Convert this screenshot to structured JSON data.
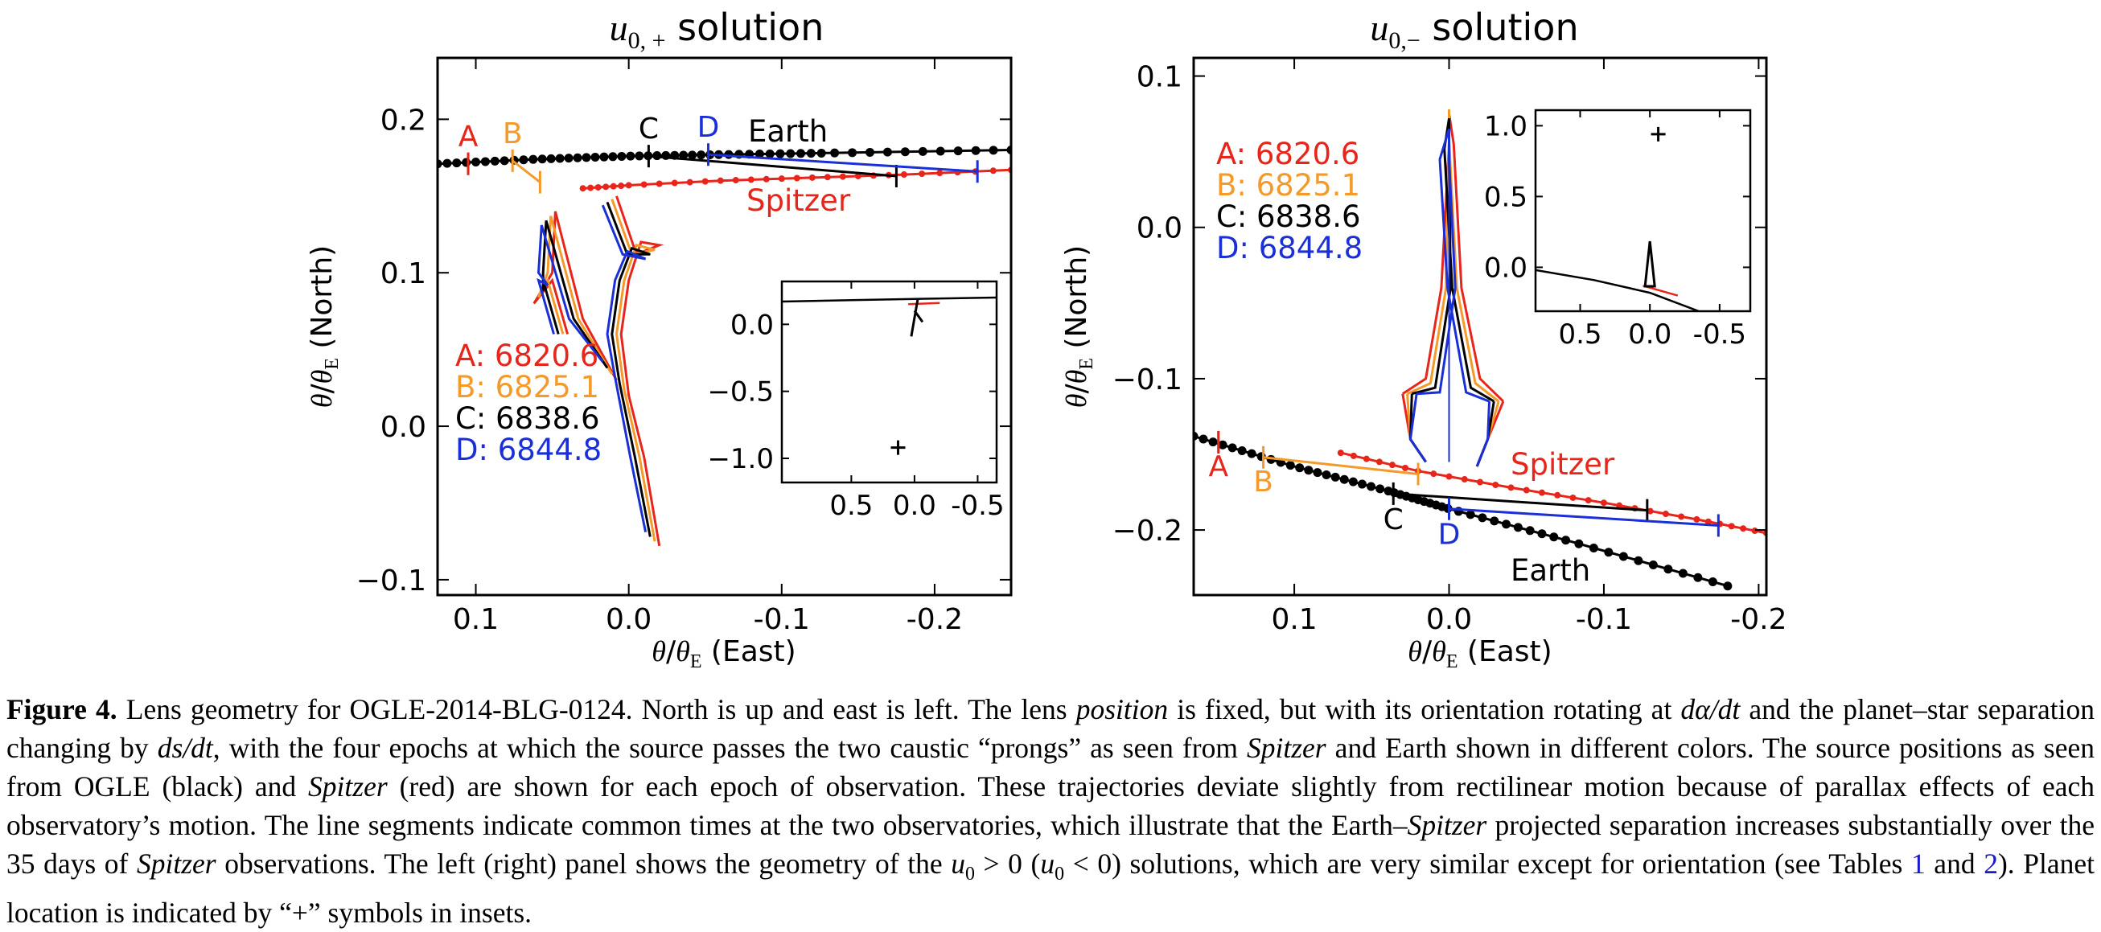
{
  "colors": {
    "A": "#e8251b",
    "B": "#f39a2a",
    "C": "#000000",
    "D": "#1a2fd6"
  },
  "figure_number": "Figure 4.",
  "caption_segments": [
    {
      "t": "Lens geometry for OGLE-2014-BLG-0124. North is up and east is left. The lens ",
      "s": "n"
    },
    {
      "t": "position",
      "s": "i"
    },
    {
      "t": " is fixed, but with its orientation rotating at ",
      "s": "n"
    },
    {
      "t": "dα/dt",
      "s": "i"
    },
    {
      "t": " and the planet–star separation changing by ",
      "s": "n"
    },
    {
      "t": "ds/dt",
      "s": "i"
    },
    {
      "t": ", with the four epochs at which the source passes the two caustic “prongs” as seen from ",
      "s": "n"
    },
    {
      "t": "Spitzer",
      "s": "i"
    },
    {
      "t": " and Earth shown in different colors. The source positions as seen from OGLE (black) and ",
      "s": "n"
    },
    {
      "t": "Spitzer",
      "s": "i"
    },
    {
      "t": " (red) are shown for each epoch of observation. These trajectories deviate slightly from rectilinear motion because of parallax effects of each observatory’s motion. The line segments indicate common times at the two observatories, which illustrate that the Earth–",
      "s": "n"
    },
    {
      "t": "Spitzer",
      "s": "i"
    },
    {
      "t": " projected separation increases substantially over the 35 days of ",
      "s": "n"
    },
    {
      "t": "Spitzer",
      "s": "i"
    },
    {
      "t": " observations. The left (right) panel shows the geometry of the ",
      "s": "n"
    },
    {
      "t": "u",
      "s": "i"
    },
    {
      "t": "0",
      "s": "sub"
    },
    {
      "t": " > 0 (",
      "s": "n"
    },
    {
      "t": "u",
      "s": "i"
    },
    {
      "t": "0",
      "s": "sub"
    },
    {
      "t": " < 0) solutions, which are very similar except for orientation (see Tables ",
      "s": "n"
    },
    {
      "t": "1",
      "s": "ref"
    },
    {
      "t": " and ",
      "s": "n"
    },
    {
      "t": "2",
      "s": "ref"
    },
    {
      "t": "). Planet location is indicated by “+” symbols in insets.",
      "s": "n"
    }
  ],
  "chart_data": [
    {
      "type": "scatter",
      "title_math": "u",
      "title_sub": "0, +",
      "title_text": " solution",
      "xlabel_text": " (East)",
      "ylabel_text": " (North)",
      "xlim": [
        0.125,
        -0.25
      ],
      "ylim": [
        -0.11,
        0.24
      ],
      "xticks": [
        {
          "v": 0.1,
          "l": "0.1"
        },
        {
          "v": 0.0,
          "l": "0.0"
        },
        {
          "v": -0.1,
          "l": "-0.1"
        },
        {
          "v": -0.2,
          "l": "-0.2"
        }
      ],
      "yticks": [
        {
          "v": 0.2,
          "l": "0.2"
        },
        {
          "v": 0.1,
          "l": "0.1"
        },
        {
          "v": 0.0,
          "l": "0.0"
        },
        {
          "v": -0.1,
          "l": "−0.1"
        }
      ],
      "earth_label": "Earth",
      "spitzer_label": "Spitzer",
      "epochs": [
        {
          "key": "A",
          "label": "A: 6820.6",
          "letter": "A",
          "earth": [
            0.105,
            0.171
          ],
          "spitzer": [
            0.105,
            0.171
          ]
        },
        {
          "key": "B",
          "label": "B: 6825.1",
          "letter": "B",
          "earth": [
            0.076,
            0.173
          ],
          "spitzer": [
            0.058,
            0.159
          ]
        },
        {
          "key": "C",
          "label": "C: 6838.6",
          "letter": "C",
          "earth": [
            -0.013,
            0.176
          ],
          "spitzer": [
            -0.175,
            0.163
          ]
        },
        {
          "key": "D",
          "label": "D: 6844.8",
          "letter": "D",
          "earth": [
            -0.052,
            0.177
          ],
          "spitzer": [
            -0.228,
            0.166
          ]
        }
      ],
      "earth_track": [
        [
          0.125,
          0.171
        ],
        [
          0.06,
          0.174
        ],
        [
          0.0,
          0.176
        ],
        [
          -0.06,
          0.177
        ],
        [
          -0.13,
          0.178
        ],
        [
          -0.25,
          0.18
        ]
      ],
      "spitzer_track": [
        [
          0.03,
          0.155
        ],
        [
          0.0,
          0.157
        ],
        [
          -0.06,
          0.16
        ],
        [
          -0.12,
          0.162
        ],
        [
          -0.18,
          0.164
        ],
        [
          -0.25,
          0.167
        ]
      ],
      "caustics": {
        "A": [
          [
            -0.02,
            -0.078
          ],
          [
            0.0,
            0.03
          ],
          [
            0.01,
            0.08
          ],
          [
            0.0,
            0.12
          ],
          [
            -0.02,
            0.12
          ],
          [
            -0.01,
            0.11
          ],
          [
            0.015,
            0.13
          ]
        ],
        "B": [
          [
            -0.018,
            -0.075
          ],
          [
            0.002,
            0.032
          ],
          [
            0.012,
            0.082
          ]
        ],
        "C": [
          [
            -0.015,
            -0.072
          ],
          [
            0.004,
            0.035
          ],
          [
            0.014,
            0.085
          ]
        ],
        "D": [
          [
            -0.012,
            -0.069
          ],
          [
            0.006,
            0.038
          ],
          [
            0.016,
            0.088
          ]
        ]
      },
      "inset": {
        "xlim": [
          1.05,
          -0.65
        ],
        "ylim": [
          -1.18,
          0.32
        ],
        "xticks": [
          {
            "v": 0.5,
            "l": "0.5"
          },
          {
            "v": 0.0,
            "l": "0.0"
          },
          {
            "v": -0.5,
            "l": "-0.5"
          }
        ],
        "yticks": [
          {
            "v": 0.0,
            "l": "0.0"
          },
          {
            "v": -0.5,
            "l": "−0.5"
          },
          {
            "v": -1.0,
            "l": "−1.0"
          }
        ],
        "planet": [
          0.13,
          -0.92
        ],
        "earth": [
          [
            1.05,
            0.17
          ],
          [
            0.5,
            0.18
          ],
          [
            0.0,
            0.19
          ],
          [
            -0.65,
            0.2
          ]
        ],
        "spitzer": [
          [
            0.05,
            0.15
          ],
          [
            -0.2,
            0.16
          ]
        ]
      }
    },
    {
      "type": "scatter",
      "title_math": "u",
      "title_sub": "0,−",
      "title_text": " solution",
      "xlabel_text": " (East)",
      "ylabel_text": " (North)",
      "xlim": [
        0.165,
        -0.205
      ],
      "ylim": [
        -0.243,
        0.112
      ],
      "xticks": [
        {
          "v": 0.1,
          "l": "0.1"
        },
        {
          "v": 0.0,
          "l": "0.0"
        },
        {
          "v": -0.1,
          "l": "-0.1"
        },
        {
          "v": -0.2,
          "l": "-0.2"
        }
      ],
      "yticks": [
        {
          "v": 0.1,
          "l": "0.1"
        },
        {
          "v": 0.0,
          "l": "0.0"
        },
        {
          "v": -0.1,
          "l": "−0.1"
        },
        {
          "v": -0.2,
          "l": "−0.2"
        }
      ],
      "earth_label": "Earth",
      "spitzer_label": "Spitzer",
      "epochs": [
        {
          "key": "A",
          "label": "A: 6820.6",
          "letter": "A",
          "earth": [
            0.149,
            -0.142
          ],
          "spitzer": [
            0.149,
            -0.142
          ]
        },
        {
          "key": "B",
          "label": "B: 6825.1",
          "letter": "B",
          "earth": [
            0.12,
            -0.152
          ],
          "spitzer": [
            0.02,
            -0.163
          ]
        },
        {
          "key": "C",
          "label": "C: 6838.6",
          "letter": "C",
          "earth": [
            0.036,
            -0.176
          ],
          "spitzer": [
            -0.128,
            -0.187
          ]
        },
        {
          "key": "D",
          "label": "D: 6844.8",
          "letter": "D",
          "earth": [
            0.0,
            -0.186
          ],
          "spitzer": [
            -0.174,
            -0.197
          ]
        }
      ],
      "earth_track": [
        [
          0.165,
          -0.138
        ],
        [
          0.1,
          -0.158
        ],
        [
          0.04,
          -0.174
        ],
        [
          0.0,
          -0.186
        ],
        [
          -0.08,
          -0.208
        ],
        [
          -0.18,
          -0.237
        ]
      ],
      "spitzer_track": [
        [
          0.07,
          -0.149
        ],
        [
          0.02,
          -0.161
        ],
        [
          -0.04,
          -0.172
        ],
        [
          -0.1,
          -0.182
        ],
        [
          -0.16,
          -0.193
        ],
        [
          -0.205,
          -0.202
        ]
      ],
      "caustics": {
        "A": [
          [
            0.0,
            -0.15
          ],
          [
            0.0,
            0.07
          ],
          [
            0.04,
            -0.13
          ]
        ],
        "B": [
          [
            0.0,
            -0.15
          ],
          [
            0.0,
            0.07
          ]
        ],
        "C": [
          [
            0.0,
            -0.15
          ],
          [
            0.0,
            0.07
          ]
        ],
        "D": [
          [
            0.0,
            -0.15
          ],
          [
            0.0,
            0.07
          ]
        ]
      },
      "inset": {
        "xlim": [
          0.82,
          -0.72
        ],
        "ylim": [
          -0.31,
          1.11
        ],
        "xticks": [
          {
            "v": 0.5,
            "l": "0.5"
          },
          {
            "v": 0.0,
            "l": "0.0"
          },
          {
            "v": -0.5,
            "l": "-0.5"
          }
        ],
        "yticks": [
          {
            "v": 1.0,
            "l": "1.0"
          },
          {
            "v": 0.5,
            "l": "0.5"
          },
          {
            "v": 0.0,
            "l": "0.0"
          }
        ],
        "planet": [
          -0.06,
          0.94
        ],
        "earth": [
          [
            0.82,
            -0.02
          ],
          [
            0.4,
            -0.09
          ],
          [
            0.0,
            -0.18
          ],
          [
            -0.35,
            -0.31
          ]
        ],
        "spitzer": [
          [
            0.05,
            -0.13
          ],
          [
            -0.2,
            -0.2
          ]
        ]
      }
    }
  ]
}
